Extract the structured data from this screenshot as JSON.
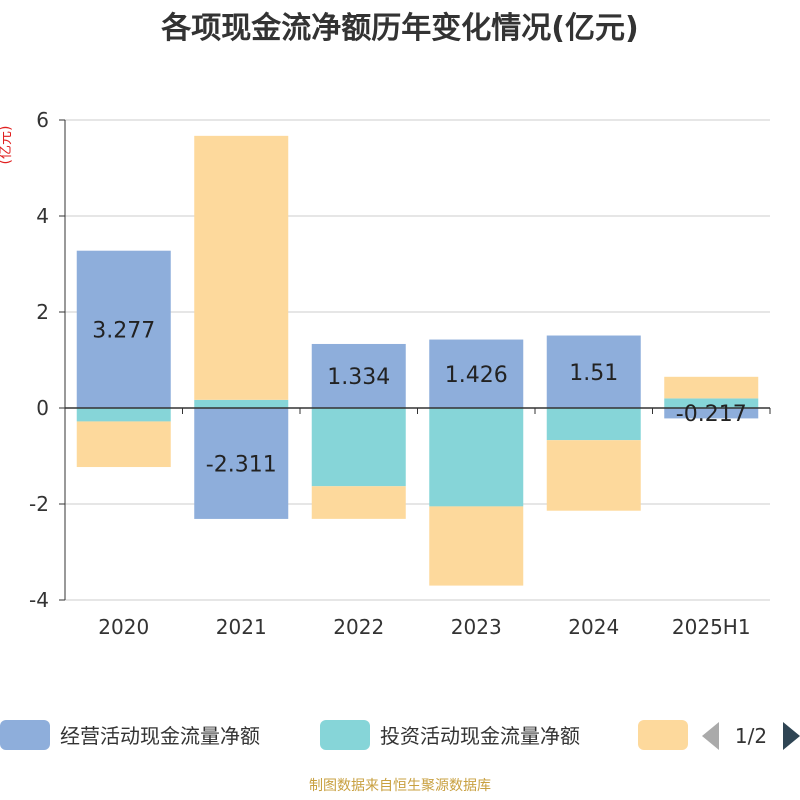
{
  "chart_data": {
    "type": "bar",
    "stacked": true,
    "title": "各项现金流净额历年变化情况(亿元)",
    "ylabel": "(亿元)",
    "xlabel": "",
    "categories": [
      "2020",
      "2021",
      "2022",
      "2023",
      "2024",
      "2025H1"
    ],
    "ylim": [
      -4,
      6
    ],
    "yticks": [
      -4,
      -2,
      0,
      2,
      4,
      6
    ],
    "grid": true,
    "series": [
      {
        "name": "经营活动现金流量净额",
        "color": "#8eaedb",
        "values": [
          3.277,
          -2.311,
          1.334,
          1.426,
          1.51,
          -0.217
        ],
        "labels": [
          "3.277",
          "-2.311",
          "1.334",
          "1.426",
          "1.51",
          "-0.217"
        ]
      },
      {
        "name": "投资活动现金流量净额",
        "color": "#86d5d8",
        "values": [
          -0.28,
          0.17,
          -1.63,
          -2.05,
          -0.67,
          0.2
        ],
        "labels": [
          "",
          "",
          "",
          "",
          "",
          ""
        ]
      },
      {
        "name": "",
        "color": "#fdd99c",
        "values": [
          -0.95,
          5.5,
          -0.68,
          -1.65,
          -1.47,
          0.45
        ],
        "labels": [
          "",
          "",
          "",
          "",
          "",
          ""
        ]
      }
    ],
    "legend_position": "bottom",
    "legend_page": "1/2"
  },
  "footer": {
    "source": "制图数据来自恒生聚源数据库"
  }
}
